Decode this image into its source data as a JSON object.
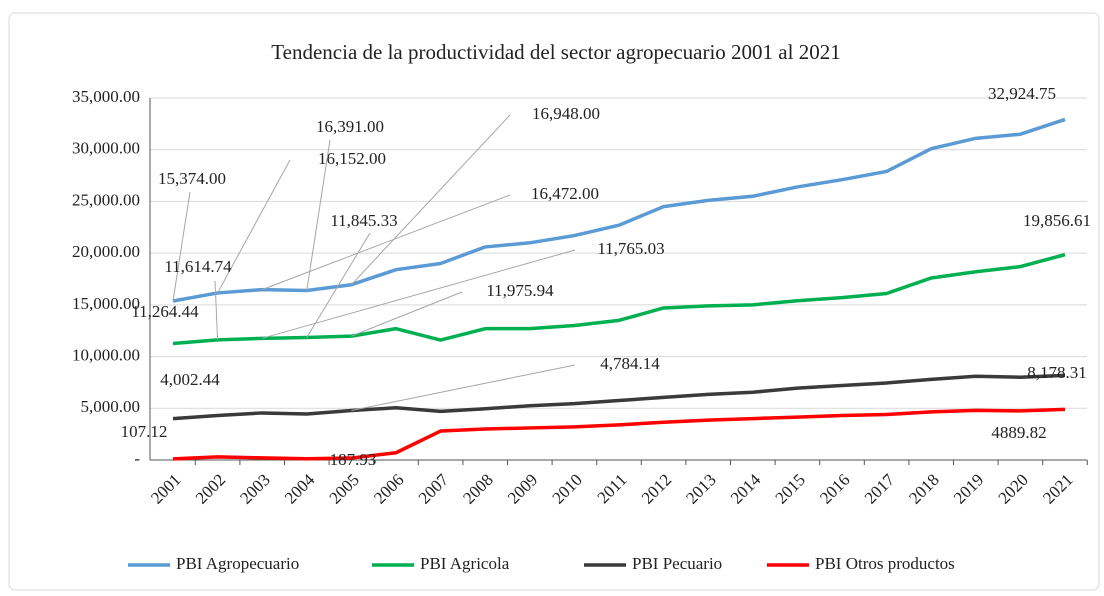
{
  "chart_data": {
    "type": "line",
    "title": "Tendencia de la productividad del sector agropecuario 2001 al 2021",
    "categories": [
      "2001",
      "2002",
      "2003",
      "2004",
      "2005",
      "2006",
      "2007",
      "2008",
      "2009",
      "2010",
      "2011",
      "2012",
      "2013",
      "2014",
      "2015",
      "2016",
      "2017",
      "2018",
      "2019",
      "2020",
      "2021"
    ],
    "series": [
      {
        "name": "PBI Agropecuario",
        "color": "#5b9bd5",
        "values": [
          15374,
          16152,
          16472,
          16391,
          16948,
          18400,
          19000,
          20600,
          21000,
          21700,
          22700,
          24500,
          25100,
          25500,
          26400,
          27100,
          27900,
          30100,
          31100,
          31500,
          32924.75
        ],
        "value_labels": [
          "15,374.00",
          "16,152.00",
          "16,472.00",
          "16,391.00",
          "16,948.00",
          null,
          null,
          null,
          null,
          null,
          null,
          null,
          null,
          null,
          null,
          null,
          null,
          null,
          null,
          null,
          "32,924.75"
        ]
      },
      {
        "name": "PBI Agricola",
        "color": "#00b050",
        "values": [
          11264.44,
          11614.74,
          11765.03,
          11845.33,
          11975.94,
          12700,
          11600,
          12700,
          12700,
          13000,
          13500,
          14700,
          14900,
          15000,
          15400,
          15700,
          16100,
          17600,
          18200,
          18700,
          19856.61
        ],
        "value_labels": [
          "11,264.44",
          "11,614.74",
          "11,765.03",
          "11,845.33",
          "11,975.94",
          null,
          null,
          null,
          null,
          null,
          null,
          null,
          null,
          null,
          null,
          null,
          null,
          null,
          null,
          null,
          "19,856.61"
        ]
      },
      {
        "name": "PBI Pecuario",
        "color": "#3a3a3a",
        "values": [
          4002.44,
          4300,
          4550,
          4450,
          4784.14,
          5050,
          4700,
          4950,
          5250,
          5450,
          5750,
          6050,
          6350,
          6550,
          6950,
          7200,
          7450,
          7800,
          8100,
          8000,
          8178.31
        ],
        "value_labels": [
          "4,002.44",
          null,
          null,
          null,
          "4,784.14",
          null,
          null,
          null,
          null,
          null,
          null,
          null,
          null,
          null,
          null,
          null,
          null,
          null,
          null,
          null,
          "8,178.31"
        ]
      },
      {
        "name": "PBI Otros productos",
        "color": "#ff0000",
        "values": [
          107.12,
          300,
          200,
          120,
          187.93,
          700,
          2800,
          3000,
          3100,
          3200,
          3400,
          3650,
          3850,
          4000,
          4150,
          4300,
          4400,
          4650,
          4800,
          4750,
          4889.82
        ],
        "value_labels": [
          "107.12",
          null,
          null,
          null,
          "187.93",
          null,
          null,
          null,
          null,
          null,
          null,
          null,
          null,
          null,
          null,
          null,
          null,
          null,
          null,
          null,
          "4889.82"
        ]
      }
    ],
    "ylim": [
      0,
      35000
    ],
    "yticks": [
      {
        "value": 0,
        "label": "-"
      },
      {
        "value": 5000,
        "label": "5,000.00"
      },
      {
        "value": 10000,
        "label": "10,000.00"
      },
      {
        "value": 15000,
        "label": "15,000.00"
      },
      {
        "value": 20000,
        "label": "20,000.00"
      },
      {
        "value": 25000,
        "label": "25,000.00"
      },
      {
        "value": 30000,
        "label": "30,000.00"
      },
      {
        "value": 35000,
        "label": "35,000.00"
      }
    ],
    "grid": true,
    "legend": "bottom"
  }
}
